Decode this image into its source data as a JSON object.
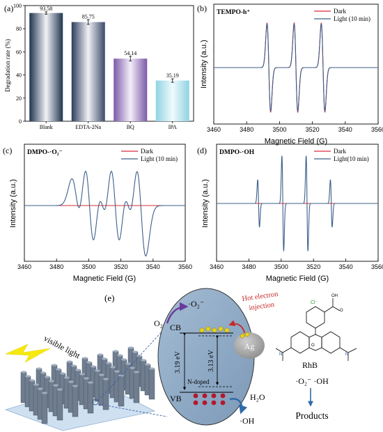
{
  "chart_data": [
    {
      "panel": "(a)",
      "type": "bar",
      "ylabel": "Degradation rate (%)",
      "ylim": [
        0,
        100
      ],
      "yticks": [
        0,
        20,
        40,
        60,
        80,
        100
      ],
      "categories": [
        "Blank",
        "EDTA-2Na",
        "BQ",
        "IPA"
      ],
      "values": [
        93.58,
        85.75,
        54.14,
        35.19
      ],
      "value_labels": [
        "93.58",
        "85.75",
        "54.14",
        "35.19"
      ],
      "error": [
        1.0,
        2.0,
        2.0,
        1.5
      ],
      "colors": [
        "#1e3550",
        "#2e3d5c",
        "#7b58a8",
        "#8fd3e3"
      ]
    },
    {
      "panel": "(b)",
      "type": "line",
      "title": "TEMPO-h⁺",
      "xlabel": "Magnetic Field (G)",
      "ylabel": "Intensity (a.u.)",
      "xlim": [
        3460,
        3560
      ],
      "xticks": [
        3460,
        3480,
        3500,
        3520,
        3540,
        3560
      ],
      "legend": "top-right",
      "series": [
        {
          "name": "Dark",
          "color": "#d62b3a",
          "centers": [
            3493.5,
            3510,
            3526.5
          ],
          "amp": 0.82,
          "width": 1.1
        },
        {
          "name": "Light (10 min)",
          "color": "#3b5f8a",
          "centers": [
            3493.5,
            3510,
            3526.5
          ],
          "amp": 0.8,
          "width": 1.1
        }
      ]
    },
    {
      "panel": "(c)",
      "type": "line",
      "title": "DMPO-·O₂⁻",
      "xlabel": "Magnetic Field (G)",
      "ylabel": "Intensity (a.u.)",
      "xlim": [
        3460,
        3560
      ],
      "xticks": [
        3460,
        3480,
        3500,
        3520,
        3540,
        3560
      ],
      "legend": "top-right",
      "series": [
        {
          "name": "Dark",
          "color": "#d62b3a",
          "flat": true
        },
        {
          "name": "Light (10 min)",
          "color": "#3b5f8a",
          "centers": [
            3492.5,
            3500.5,
            3508.5,
            3516.5,
            3524.5,
            3532.5
          ],
          "amps": [
            0.5,
            0.95,
            0.5,
            0.95,
            0.5,
            0.95
          ],
          "width": 3.0
        }
      ]
    },
    {
      "panel": "(d)",
      "type": "line",
      "title": "DMPO-·OH",
      "xlabel": "Magnetic Field (G)",
      "ylabel": "Intensity (a.u.)",
      "xlim": [
        3460,
        3560
      ],
      "xticks": [
        3460,
        3480,
        3500,
        3520,
        3540,
        3560
      ],
      "legend": "top-right",
      "series": [
        {
          "name": "Dark",
          "color": "#d62b3a",
          "flat": true
        },
        {
          "name": "Light(10 min)",
          "color": "#3b5f8a",
          "centers": [
            3486,
            3501,
            3516,
            3531
          ],
          "amps": [
            0.45,
            0.9,
            0.9,
            0.45
          ],
          "width": 0.55
        }
      ]
    }
  ],
  "scheme": {
    "panel": "(e)",
    "visible_light": "visible light",
    "cb": "CB",
    "vb": "VB",
    "gap_left": "3.19 eV",
    "gap_right": "3.13 eV",
    "n_doped": "N-doped",
    "o2": "O₂",
    "superoxide": "·O₂⁻",
    "hot_electron": "Hot electron injection",
    "hot_line1": "Hot electron",
    "hot_line2": "injection",
    "ag": "Ag",
    "h2o": "H₂O",
    "oh": "·OH",
    "rhb": "RhB",
    "rhb_cl": "Cl⁻",
    "products_radicals": "·O₂⁻  ·OH",
    "products": "Products"
  }
}
